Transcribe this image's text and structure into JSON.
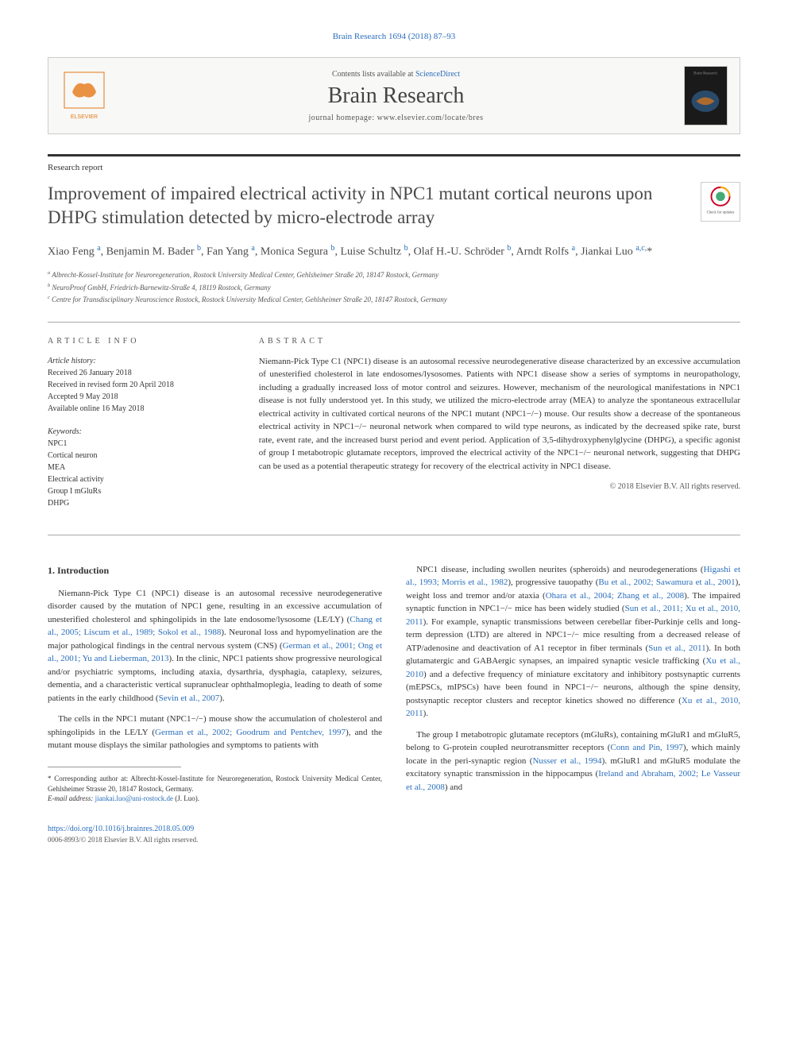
{
  "journal_ref": "Brain Research 1694 (2018) 87–93",
  "header": {
    "contents_prefix": "Contents lists available at ",
    "contents_link": "ScienceDirect",
    "journal_title": "Brain Research",
    "homepage_prefix": "journal homepage: ",
    "homepage_url": "www.elsevier.com/locate/bres",
    "publisher_name": "ELSEVIER",
    "cover_label": "Brain Research"
  },
  "article_type": "Research report",
  "title": "Improvement of impaired electrical activity in NPC1 mutant cortical neurons upon DHPG stimulation detected by micro-electrode array",
  "check_updates_label": "Check for updates",
  "authors_html": "Xiao Feng <sup>a</sup>, Benjamin M. Bader <sup>b</sup>, Fan Yang <sup>a</sup>, Monica Segura <sup>b</sup>, Luise Schultz <sup>b</sup>, Olaf H.-U. Schröder <sup>b</sup>, Arndt Rolfs <sup>a</sup>, Jiankai Luo <sup>a,c,</sup>*",
  "affiliations": [
    "a Albrecht-Kossel-Institute for Neuroregeneration, Rostock University Medical Center, Gehlsheimer Straße 20, 18147 Rostock, Germany",
    "b NeuroProof GmbH, Friedrich-Barnewitz-Straße 4, 18119 Rostock, Germany",
    "c Centre for Transdisciplinary Neuroscience Rostock, Rostock University Medical Center, Gehlsheimer Straße 20, 18147 Rostock, Germany"
  ],
  "info": {
    "heading": "ARTICLE INFO",
    "history_label": "Article history:",
    "history": [
      "Received 26 January 2018",
      "Received in revised form 20 April 2018",
      "Accepted 9 May 2018",
      "Available online 16 May 2018"
    ],
    "keywords_label": "Keywords:",
    "keywords": [
      "NPC1",
      "Cortical neuron",
      "MEA",
      "Electrical activity",
      "Group I mGluRs",
      "DHPG"
    ]
  },
  "abstract": {
    "heading": "ABSTRACT",
    "text": "Niemann-Pick Type C1 (NPC1) disease is an autosomal recessive neurodegenerative disease characterized by an excessive accumulation of unesterified cholesterol in late endosomes/lysosomes. Patients with NPC1 disease show a series of symptoms in neuropathology, including a gradually increased loss of motor control and seizures. However, mechanism of the neurological manifestations in NPC1 disease is not fully understood yet. In this study, we utilized the micro-electrode array (MEA) to analyze the spontaneous extracellular electrical activity in cultivated cortical neurons of the NPC1 mutant (NPC1−/−) mouse. Our results show a decrease of the spontaneous electrical activity in NPC1−/− neuronal network when compared to wild type neurons, as indicated by the decreased spike rate, burst rate, event rate, and the increased burst period and event period. Application of 3,5-dihydroxyphenylglycine (DHPG), a specific agonist of group I metabotropic glutamate receptors, improved the electrical activity of the NPC1−/− neuronal network, suggesting that DHPG can be used as a potential therapeutic strategy for recovery of the electrical activity in NPC1 disease.",
    "copyright": "© 2018 Elsevier B.V. All rights reserved."
  },
  "body": {
    "left": {
      "heading": "1. Introduction",
      "p1_pre": "Niemann-Pick Type C1 (NPC1) disease is an autosomal recessive neurodegenerative disorder caused by the mutation of NPC1 gene, resulting in an excessive accumulation of unesterified cholesterol and sphingolipids in the late endosome/lysosome (LE/LY) (",
      "p1_ref1": "Chang et al., 2005; Liscum et al., 1989; Sokol et al., 1988",
      "p1_mid1": "). Neuronal loss and hypomyelination are the major pathological findings in the central nervous system (CNS) (",
      "p1_ref2": "German et al., 2001; Ong et al., 2001; Yu and Lieberman, 2013",
      "p1_mid2": "). In the clinic, NPC1 patients show progressive neurological and/or psychiatric symptoms, including ataxia, dysarthria, dysphagia, cataplexy, seizures, dementia, and a characteristic vertical supranuclear ophthalmoplegia, leading to death of some patients in the early childhood (",
      "p1_ref3": "Sevin et al., 2007",
      "p1_end": ").",
      "p2_pre": "The cells in the NPC1 mutant (NPC1−/−) mouse show the accumulation of cholesterol and sphingolipids in the LE/LY (",
      "p2_ref1": "German et al., 2002; Goodrum and Pentchev, 1997",
      "p2_end": "), and the mutant mouse displays the similar pathologies and symptoms to patients with"
    },
    "right": {
      "p1_pre": "NPC1 disease, including swollen neurites (spheroids) and neurodegenerations (",
      "p1_ref1": "Higashi et al., 1993; Morris et al., 1982",
      "p1_mid1": "), progressive tauopathy (",
      "p1_ref2": "Bu et al., 2002; Sawamura et al., 2001",
      "p1_mid2": "), weight loss and tremor and/or ataxia (",
      "p1_ref3": "Ohara et al., 2004; Zhang et al., 2008",
      "p1_mid3": "). The impaired synaptic function in NPC1−/− mice has been widely studied (",
      "p1_ref4": "Sun et al., 2011; Xu et al., 2010, 2011",
      "p1_mid4": "). For example, synaptic transmissions between cerebellar fiber-Purkinje cells and long-term depression (LTD) are altered in NPC1−/− mice resulting from a decreased release of ATP/adenosine and deactivation of A1 receptor in fiber terminals (",
      "p1_ref5": "Sun et al., 2011",
      "p1_mid5": "). In both glutamatergic and GABAergic synapses, an impaired synaptic vesicle trafficking (",
      "p1_ref6": "Xu et al., 2010",
      "p1_mid6": ") and a defective frequency of miniature excitatory and inhibitory postsynaptic currents (mEPSCs, mIPSCs) have been found in NPC1−/− neurons, although the spine density, postsynaptic receptor clusters and receptor kinetics showed no difference (",
      "p1_ref7": "Xu et al., 2010, 2011",
      "p1_end": ").",
      "p2_pre": "The group I metabotropic glutamate receptors (mGluRs), containing mGluR1 and mGluR5, belong to G-protein coupled neurotransmitter receptors (",
      "p2_ref1": "Conn and Pin, 1997",
      "p2_mid1": "), which mainly locate in the peri-synaptic region (",
      "p2_ref2": "Nusser et al., 1994",
      "p2_mid2": "). mGluR1 and mGluR5 modulate the excitatory synaptic transmission in the hippocampus (",
      "p2_ref3": "Ireland and Abraham, 2002; Le Vasseur et al., 2008",
      "p2_end": ") and"
    }
  },
  "footnote": {
    "corr_label": "* Corresponding author at: Albrecht-Kossel-Institute for Neuroregeneration, Rostock University Medical Center, Gehlsheimer Strasse 20, 18147 Rostock, Germany.",
    "email_label": "E-mail address: ",
    "email": "jiankai.luo@uni-rostock.de",
    "email_suffix": " (J. Luo)."
  },
  "footer": {
    "doi": "https://doi.org/10.1016/j.brainres.2018.05.009",
    "issn_cr": "0006-8993/© 2018 Elsevier B.V. All rights reserved."
  },
  "colors": {
    "link": "#2a6ebb",
    "text": "#333333",
    "muted": "#555555",
    "border": "#cccccc"
  }
}
